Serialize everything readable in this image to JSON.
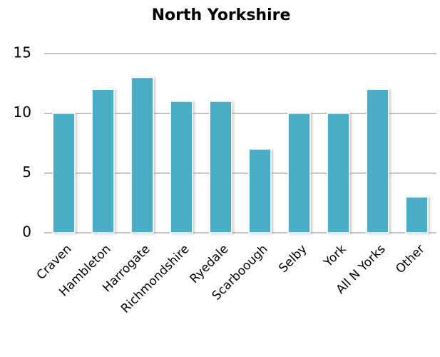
{
  "chart_data": {
    "type": "bar",
    "title": "North Yorkshire",
    "categories": [
      "Craven",
      "Hambleton",
      "Harrogate",
      "Richmondshire",
      "Ryedale",
      "Scarboough",
      "Selby",
      "York",
      "All N Yorks",
      "Other"
    ],
    "values": [
      10,
      12,
      13,
      11,
      11,
      7,
      10,
      10,
      12,
      3
    ],
    "color": "#4bacc6",
    "ylim": [
      0,
      15
    ],
    "yticks": [
      0,
      5,
      10,
      15
    ],
    "grid": true
  }
}
